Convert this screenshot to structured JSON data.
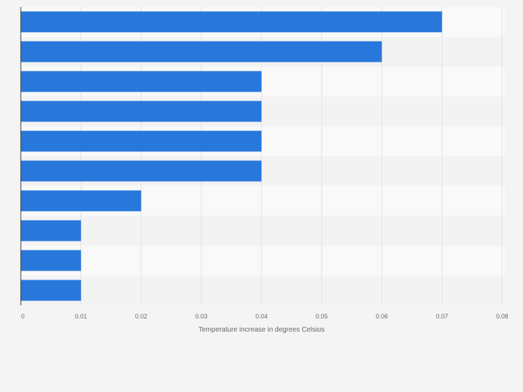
{
  "chart_data": {
    "type": "bar",
    "orientation": "horizontal",
    "categories": [
      "",
      "",
      "",
      "",
      "",
      "",
      "",
      "",
      "",
      ""
    ],
    "values": [
      0.07,
      0.06,
      0.04,
      0.04,
      0.04,
      0.04,
      0.02,
      0.01,
      0.01,
      0.01
    ],
    "title": "",
    "xlabel": "Temperature increase in degrees Celsius",
    "ylabel": "",
    "xlim": [
      0,
      0.08
    ],
    "ticks": [
      "0",
      "0.01",
      "0.02",
      "0.03",
      "0.04",
      "0.05",
      "0.06",
      "0.07",
      "0.08"
    ],
    "grid": true,
    "legend": "none",
    "colors": {
      "bar": "#2878dc",
      "background": "#f4f4f4",
      "band_light": "#f9f9f9",
      "band_dark": "#f3f3f3",
      "gridline": "#e2e2e2",
      "axis": "#333333",
      "tick_text": "#666666"
    }
  }
}
